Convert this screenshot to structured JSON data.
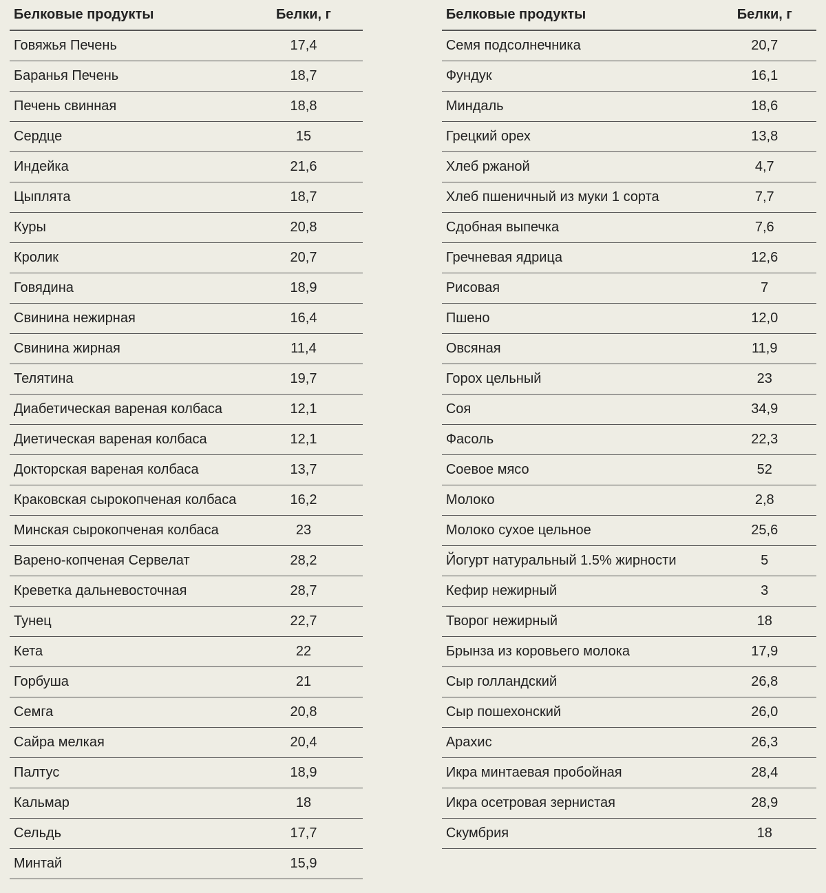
{
  "headers": {
    "name": "Белковые продукты",
    "value": "Белки, г"
  },
  "left": [
    {
      "name": "Говяжья Печень",
      "value": "17,4"
    },
    {
      "name": "Баранья Печень",
      "value": "18,7"
    },
    {
      "name": "Печень свинная",
      "value": "18,8"
    },
    {
      "name": "Сердце",
      "value": "15"
    },
    {
      "name": "Индейка",
      "value": "21,6"
    },
    {
      "name": "Цыплята",
      "value": "18,7"
    },
    {
      "name": "Куры",
      "value": "20,8"
    },
    {
      "name": "Кролик",
      "value": "20,7"
    },
    {
      "name": "Говядина",
      "value": "18,9"
    },
    {
      "name": "Свинина нежирная",
      "value": "16,4"
    },
    {
      "name": "Свинина жирная",
      "value": "11,4"
    },
    {
      "name": "Телятина",
      "value": "19,7"
    },
    {
      "name": "Диабетическая вареная колбаса",
      "value": "12,1"
    },
    {
      "name": "Диетическая вареная колбаса",
      "value": "12,1"
    },
    {
      "name": "Докторская вареная колбаса",
      "value": "13,7"
    },
    {
      "name": "Краковская сырокопченая колбаса",
      "value": "16,2"
    },
    {
      "name": "Минская сырокопченая колбаса",
      "value": "23"
    },
    {
      "name": "Варено-копченая Сервелат",
      "value": "28,2"
    },
    {
      "name": "Креветка дальневосточная",
      "value": "28,7"
    },
    {
      "name": "Тунец",
      "value": "22,7"
    },
    {
      "name": "Кета",
      "value": "22"
    },
    {
      "name": "Горбуша",
      "value": "21"
    },
    {
      "name": "Семга",
      "value": "20,8"
    },
    {
      "name": "Сайра мелкая",
      "value": "20,4"
    },
    {
      "name": "Палтус",
      "value": "18,9"
    },
    {
      "name": "Кальмар",
      "value": "18"
    },
    {
      "name": "Сельдь",
      "value": "17,7"
    },
    {
      "name": "Минтай",
      "value": "15,9"
    }
  ],
  "right": [
    {
      "name": "Семя подсолнечника",
      "value": "20,7"
    },
    {
      "name": "Фундук",
      "value": "16,1"
    },
    {
      "name": "Миндаль",
      "value": "18,6"
    },
    {
      "name": "Грецкий орех",
      "value": "13,8"
    },
    {
      "name": "Хлеб ржаной",
      "value": "4,7"
    },
    {
      "name": "Хлеб пшеничный из муки 1 сорта",
      "value": "7,7"
    },
    {
      "name": "Сдобная выпечка",
      "value": "7,6"
    },
    {
      "name": "Гречневая ядрица",
      "value": "12,6"
    },
    {
      "name": "Рисовая",
      "value": "7"
    },
    {
      "name": "Пшено",
      "value": "12,0"
    },
    {
      "name": "Овсяная",
      "value": "11,9"
    },
    {
      "name": "Горох цельный",
      "value": "23"
    },
    {
      "name": "Соя",
      "value": "34,9"
    },
    {
      "name": "Фасоль",
      "value": "22,3"
    },
    {
      "name": "Соевое мясо",
      "value": "52"
    },
    {
      "name": "Молоко",
      "value": "2,8"
    },
    {
      "name": "Молоко сухое цельное",
      "value": "25,6"
    },
    {
      "name": "Йогурт натуральный 1.5% жирности",
      "value": "5"
    },
    {
      "name": "Кефир нежирный",
      "value": "3"
    },
    {
      "name": "Творог нежирный",
      "value": "18"
    },
    {
      "name": "Брынза из коровьего молока",
      "value": "17,9"
    },
    {
      "name": "Сыр голландский",
      "value": "26,8"
    },
    {
      "name": "Сыр пошехонский",
      "value": "26,0"
    },
    {
      "name": "Арахис",
      "value": "26,3"
    },
    {
      "name": "Икра минтаевая пробойная",
      "value": "28,4"
    },
    {
      "name": "Икра осетровая зернистая",
      "value": "28,9"
    },
    {
      "name": "Скумбрия",
      "value": "18"
    }
  ],
  "style": {
    "background_color": "#eeede4",
    "text_color": "#222222",
    "border_color": "#555555",
    "header_border_width": 2,
    "row_border_width": 1,
    "font_family": "Arial",
    "font_size_pt": 15,
    "header_font_weight": "bold"
  },
  "structure": "table"
}
